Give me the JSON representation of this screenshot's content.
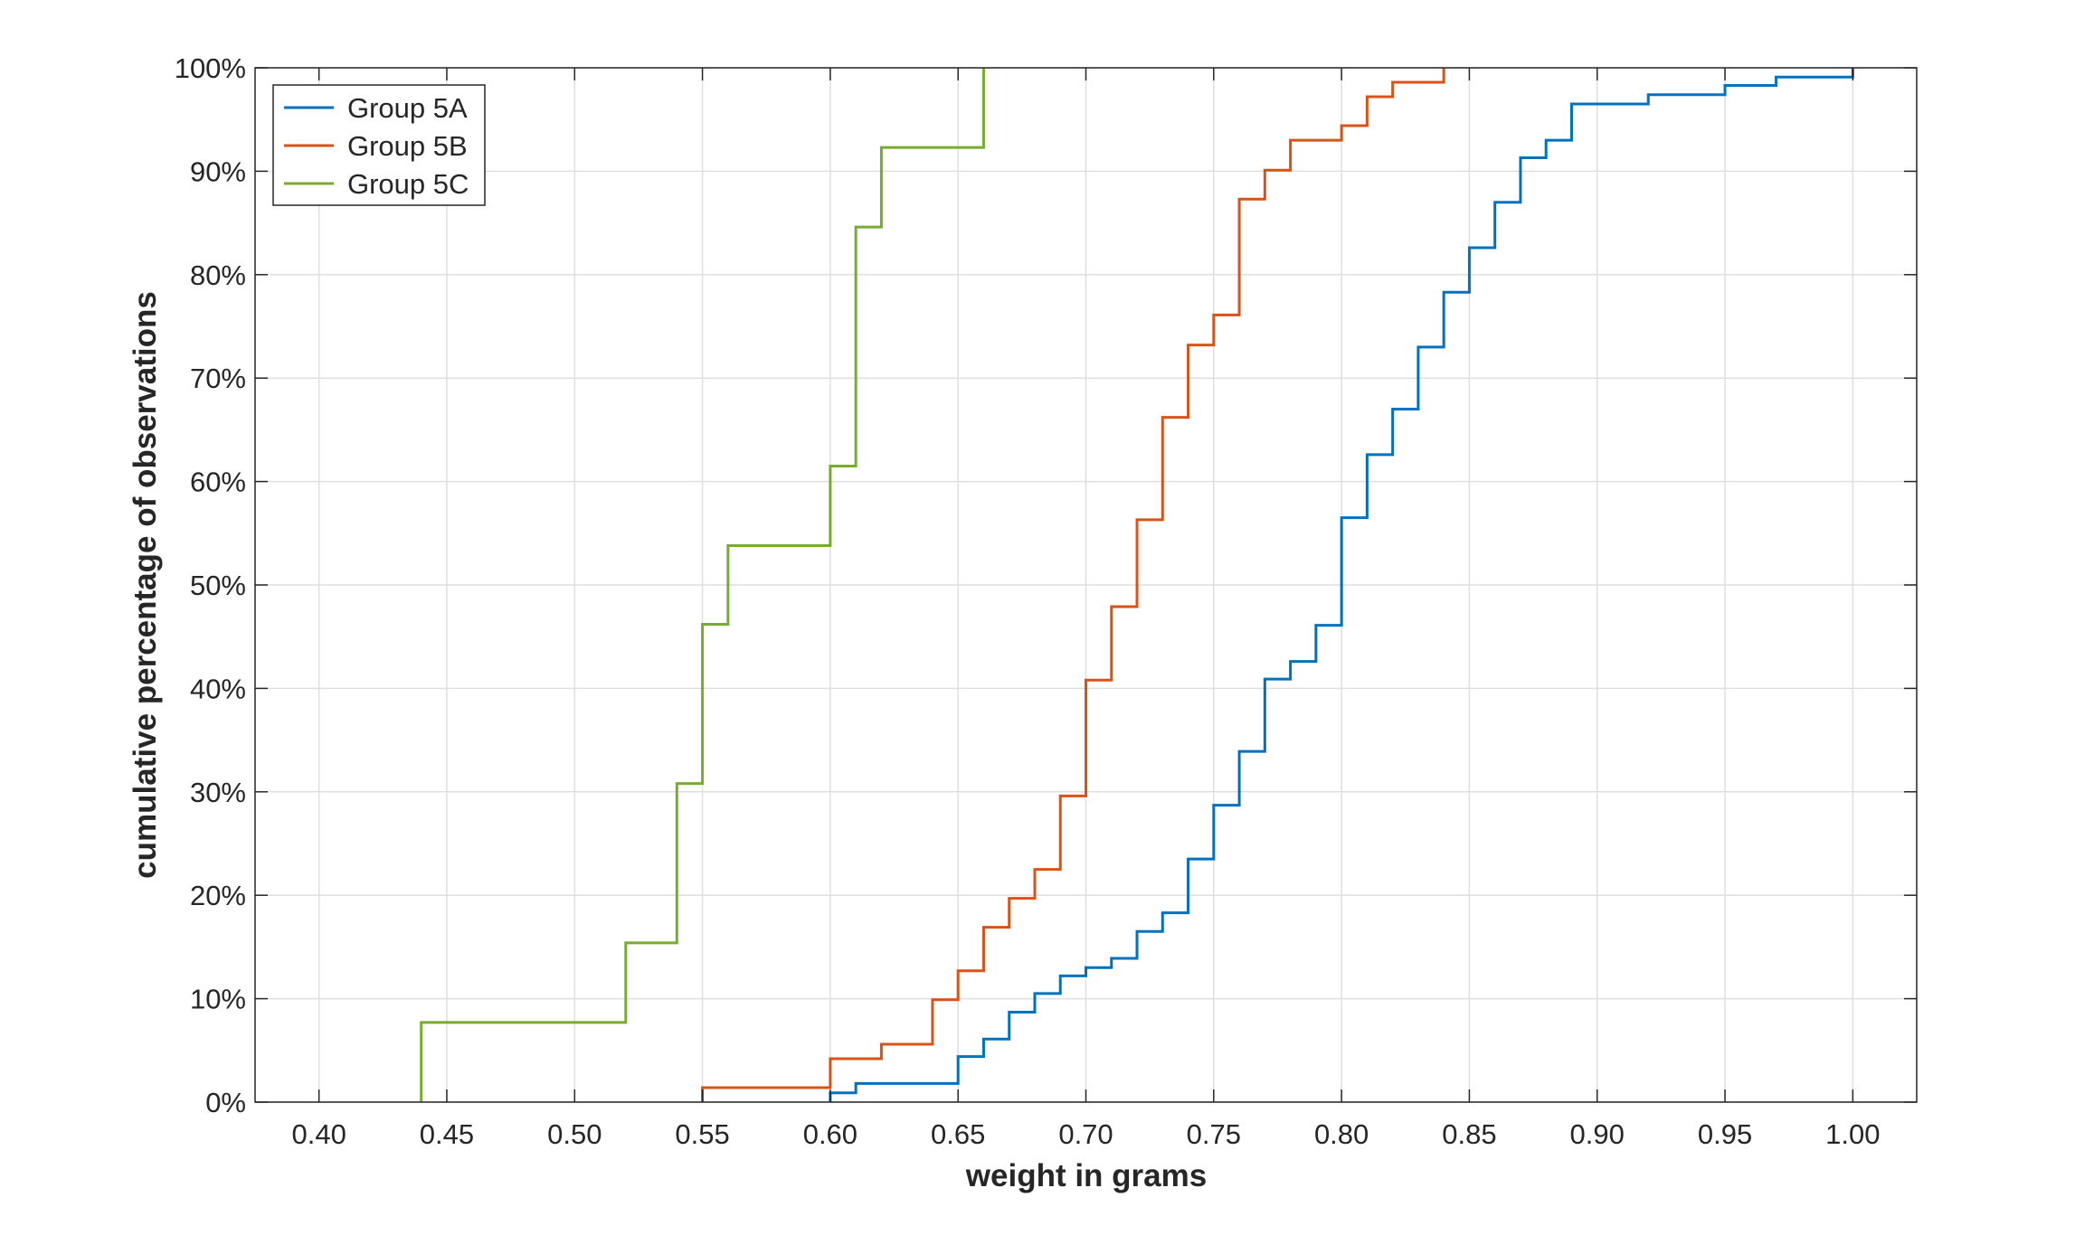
{
  "chart_data": {
    "type": "line",
    "step": true,
    "title": "",
    "xlabel": "weight in grams",
    "ylabel": "cumulative percentage of observations",
    "xlim": [
      0.375,
      1.025
    ],
    "ylim": [
      0,
      100
    ],
    "xticks": [
      0.4,
      0.45,
      0.5,
      0.55,
      0.6,
      0.65,
      0.7,
      0.75,
      0.8,
      0.85,
      0.9,
      0.95,
      1.0
    ],
    "xtick_labels": [
      "0.40",
      "0.45",
      "0.50",
      "0.55",
      "0.60",
      "0.65",
      "0.70",
      "0.75",
      "0.80",
      "0.85",
      "0.90",
      "0.95",
      "1.00"
    ],
    "yticks": [
      0,
      10,
      20,
      30,
      40,
      50,
      60,
      70,
      80,
      90,
      100
    ],
    "ytick_labels": [
      "0%",
      "10%",
      "20%",
      "30%",
      "40%",
      "50%",
      "60%",
      "70%",
      "80%",
      "90%",
      "100%"
    ],
    "grid": true,
    "legend_position": "top-left",
    "series": [
      {
        "name": "Group 5A",
        "color": "#0072BD",
        "x": [
          0.6,
          0.61,
          0.65,
          0.66,
          0.67,
          0.68,
          0.69,
          0.7,
          0.71,
          0.72,
          0.73,
          0.74,
          0.75,
          0.76,
          0.77,
          0.78,
          0.79,
          0.8,
          0.81,
          0.82,
          0.83,
          0.84,
          0.85,
          0.86,
          0.87,
          0.88,
          0.89,
          0.92,
          0.95,
          0.97,
          1.0
        ],
        "y": [
          0.9,
          1.8,
          4.4,
          6.1,
          8.7,
          10.5,
          12.2,
          13.0,
          13.9,
          16.5,
          18.3,
          23.5,
          28.7,
          33.9,
          40.9,
          42.6,
          46.1,
          56.5,
          62.6,
          67.0,
          73.0,
          78.3,
          82.6,
          87.0,
          91.3,
          93.0,
          96.5,
          97.4,
          98.3,
          99.1,
          100
        ]
      },
      {
        "name": "Group 5B",
        "color": "#D95319",
        "x": [
          0.55,
          0.6,
          0.62,
          0.64,
          0.65,
          0.66,
          0.67,
          0.68,
          0.69,
          0.7,
          0.71,
          0.72,
          0.73,
          0.74,
          0.75,
          0.76,
          0.77,
          0.78,
          0.8,
          0.81,
          0.82,
          0.84
        ],
        "y": [
          1.4,
          4.2,
          5.6,
          9.9,
          12.7,
          16.9,
          19.7,
          22.5,
          29.6,
          40.8,
          47.9,
          56.3,
          66.2,
          73.2,
          76.1,
          87.3,
          90.1,
          93.0,
          94.4,
          97.2,
          98.6,
          100
        ]
      },
      {
        "name": "Group 5C",
        "color": "#77AC30",
        "x": [
          0.44,
          0.52,
          0.54,
          0.55,
          0.56,
          0.6,
          0.61,
          0.62,
          0.66
        ],
        "y": [
          7.7,
          15.4,
          30.8,
          46.2,
          53.8,
          61.5,
          84.6,
          92.3,
          100
        ]
      }
    ]
  }
}
